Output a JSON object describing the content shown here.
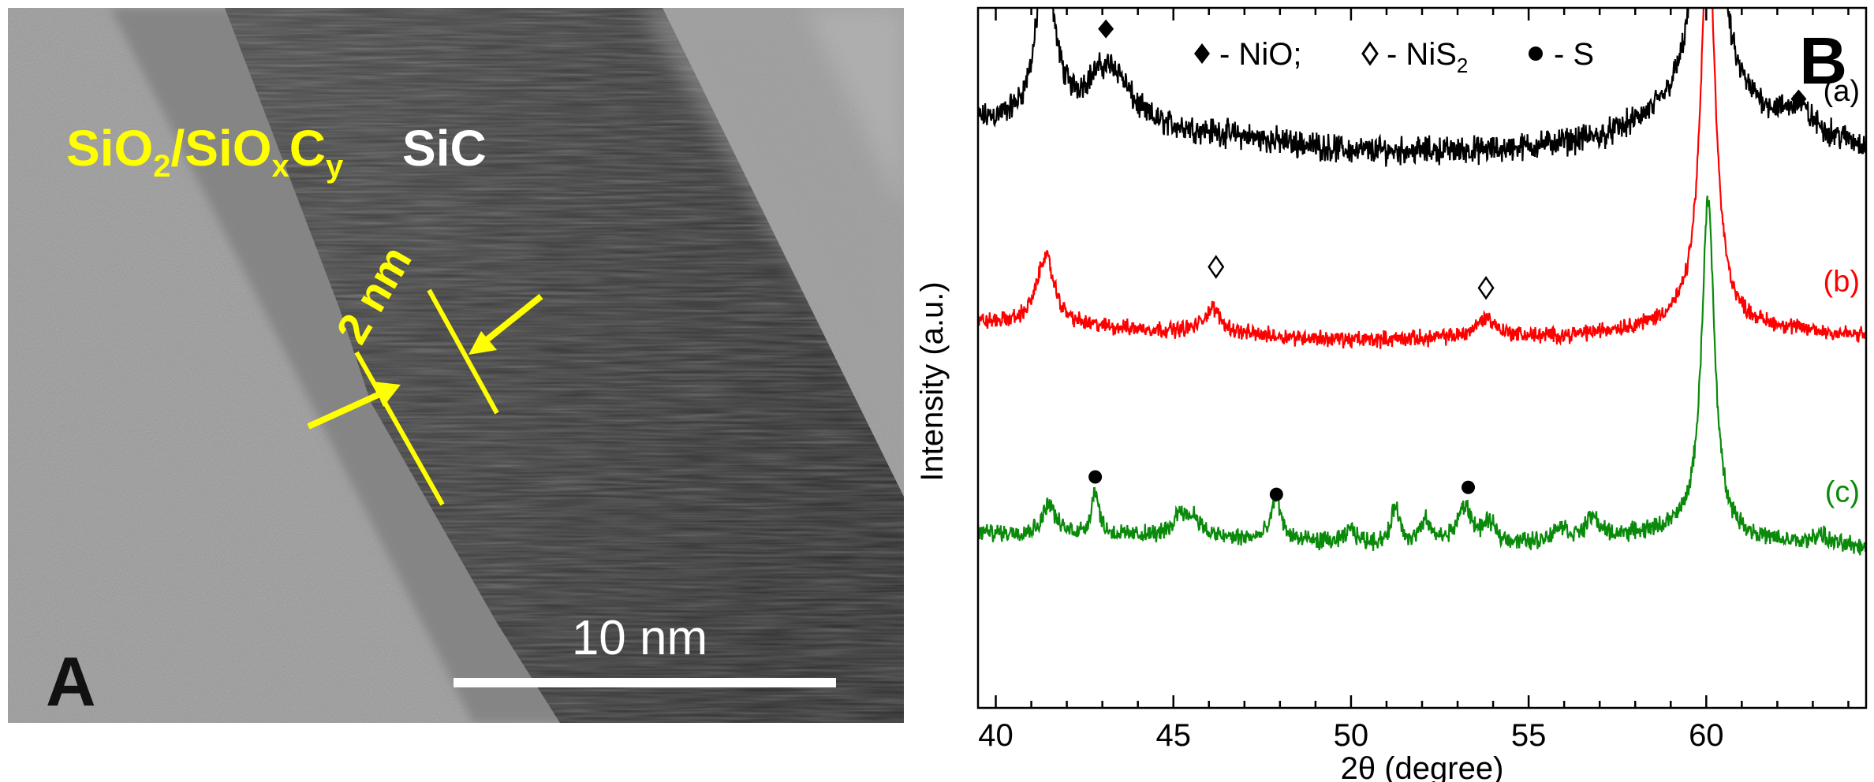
{
  "panel_a": {
    "panel_letter": "A",
    "oxide_label": {
      "parts": [
        "SiO",
        "2",
        "/SiO",
        "x",
        "C",
        "y"
      ]
    },
    "sic_label": "SiC",
    "thickness_label": "2 nm",
    "scale_bar_label": "10 nm",
    "colors": {
      "annotation": "#ffff00",
      "bar": "#ffffff",
      "letter": "#111111"
    }
  },
  "panel_b": {
    "panel_letter": "B",
    "legend": {
      "nio": "- NiO;",
      "nis2": "- NiS",
      "nis2_sub": "2",
      "s": "- S"
    }
  },
  "chart_data": {
    "type": "line",
    "title": "",
    "xlabel": "2θ (degree)",
    "ylabel": "Intensity (a.u.)",
    "xlim": [
      39.5,
      64.5
    ],
    "xticks": [
      40,
      45,
      50,
      55,
      60
    ],
    "ylim": [
      0,
      100
    ],
    "grid": false,
    "y_ticks_labelled": false,
    "series": [
      {
        "name": "(a)",
        "label": "(a)",
        "color": "#000000",
        "baseline": 81,
        "noise": 1.5,
        "peaks": [
          [
            41.4,
            24,
            0.3
          ],
          [
            42.9,
            5,
            0.6
          ],
          [
            43.4,
            5,
            0.5
          ],
          [
            60.05,
            55,
            0.35
          ],
          [
            62.6,
            3,
            0.35
          ]
        ],
        "background": [
          [
            39.5,
            2.5
          ],
          [
            43,
            2
          ],
          [
            46,
            1
          ],
          [
            50,
            -1.5
          ],
          [
            54,
            -1.5
          ],
          [
            57,
            0
          ],
          [
            59,
            3
          ],
          [
            61.5,
            3
          ],
          [
            64.5,
            -1
          ]
        ]
      },
      {
        "name": "(b)",
        "label": "(b)",
        "color": "#ff0000",
        "baseline": 53,
        "noise": 0.9,
        "peaks": [
          [
            41.4,
            10,
            0.3
          ],
          [
            46.1,
            3.5,
            0.3
          ],
          [
            53.8,
            2.8,
            0.35
          ],
          [
            60.05,
            57,
            0.25
          ]
        ],
        "background": [
          [
            39.5,
            2
          ],
          [
            44,
            1
          ],
          [
            50,
            -0.5
          ],
          [
            56,
            0
          ],
          [
            59,
            1.5
          ],
          [
            62,
            1
          ],
          [
            64.5,
            0
          ]
        ]
      },
      {
        "name": "(c)",
        "label": "(c)",
        "color": "#0a8a0a",
        "baseline": 23,
        "noise": 1.0,
        "peaks": [
          [
            41.5,
            4.5,
            0.2
          ],
          [
            42.8,
            6.5,
            0.12
          ],
          [
            45.2,
            3.5,
            0.2
          ],
          [
            45.6,
            2.5,
            0.2
          ],
          [
            47.9,
            6.5,
            0.15
          ],
          [
            50.0,
            2,
            0.15
          ],
          [
            51.25,
            5.5,
            0.12
          ],
          [
            52.1,
            3,
            0.15
          ],
          [
            53.2,
            5,
            0.25
          ],
          [
            53.9,
            2.5,
            0.2
          ],
          [
            55.9,
            2,
            0.2
          ],
          [
            56.8,
            3,
            0.2
          ],
          [
            60.05,
            48,
            0.22
          ],
          [
            63.2,
            1.5,
            0.2
          ]
        ],
        "background": [
          [
            39.5,
            2
          ],
          [
            45,
            1.5
          ],
          [
            50,
            0.5
          ],
          [
            55,
            0.5
          ],
          [
            59,
            2
          ],
          [
            62,
            0.5
          ],
          [
            64.5,
            0
          ]
        ]
      }
    ],
    "markers": [
      {
        "symbol": "filled-diamond",
        "x": 43.1,
        "y": 97,
        "phase": "NiO"
      },
      {
        "symbol": "filled-diamond",
        "x": 62.6,
        "y": 87,
        "phase": "NiO"
      },
      {
        "symbol": "open-diamond",
        "x": 46.2,
        "y": 63,
        "phase": "NiS2"
      },
      {
        "symbol": "open-diamond",
        "x": 53.8,
        "y": 60,
        "phase": "NiS2"
      },
      {
        "symbol": "dot",
        "x": 42.8,
        "y": 33,
        "phase": "S"
      },
      {
        "symbol": "dot",
        "x": 47.9,
        "y": 30.5,
        "phase": "S"
      },
      {
        "symbol": "dot",
        "x": 53.3,
        "y": 31.5,
        "phase": "S"
      }
    ]
  }
}
